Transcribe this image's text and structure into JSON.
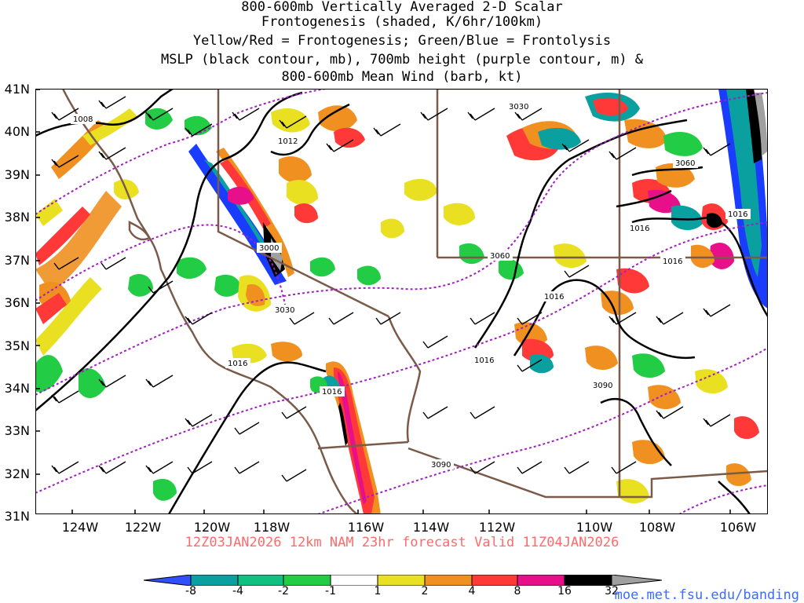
{
  "title": {
    "line1": "800-600mb Vertically Averaged 2-D Scalar",
    "line2": "Frontogenesis (shaded, K/6hr/100km)",
    "line3": "Yellow/Red = Frontogenesis;  Green/Blue = Frontolysis",
    "line4": "MSLP (black contour, mb), 700mb height (purple contour, m) &",
    "line5": "800-600mb Mean Wind (barb, kt)"
  },
  "valid_line": "12Z03JAN2026 12km NAM 23hr forecast Valid 11Z04JAN2026",
  "credit": "moe.met.fsu.edu/banding",
  "lat_labels": [
    "41N",
    "40N",
    "39N",
    "38N",
    "37N",
    "36N",
    "35N",
    "34N",
    "33N",
    "32N",
    "31N"
  ],
  "lon_labels": [
    "124W",
    "122W",
    "120W",
    "118W",
    "116W",
    "114W",
    "112W",
    "110W",
    "108W",
    "106W"
  ],
  "colorbar": {
    "labels": [
      "-8",
      "-4",
      "-2",
      "-1",
      "1",
      "2",
      "4",
      "8",
      "16",
      "32"
    ],
    "colors": [
      "#1a3cff",
      "#0aa0a0",
      "#10c080",
      "#22cc44",
      "#ffffff",
      "#e8e020",
      "#f09020",
      "#ff3838",
      "#e8108a",
      "#000000"
    ],
    "left_color": "#3050ff",
    "right_color": "#a0a0a0"
  },
  "mslp_labels": [
    "1008",
    "1012",
    "1016",
    "1016",
    "1016",
    "1016",
    "1016",
    "1016",
    "1016"
  ],
  "height_labels": [
    "3030",
    "3000",
    "3030",
    "3060",
    "3060",
    "3090",
    "3090"
  ],
  "colors": {
    "mslp": "#000000",
    "height": "#a020c0",
    "borders": "#7a5a48",
    "valid": "#ff6a6a",
    "credit": "#3a6cff"
  }
}
